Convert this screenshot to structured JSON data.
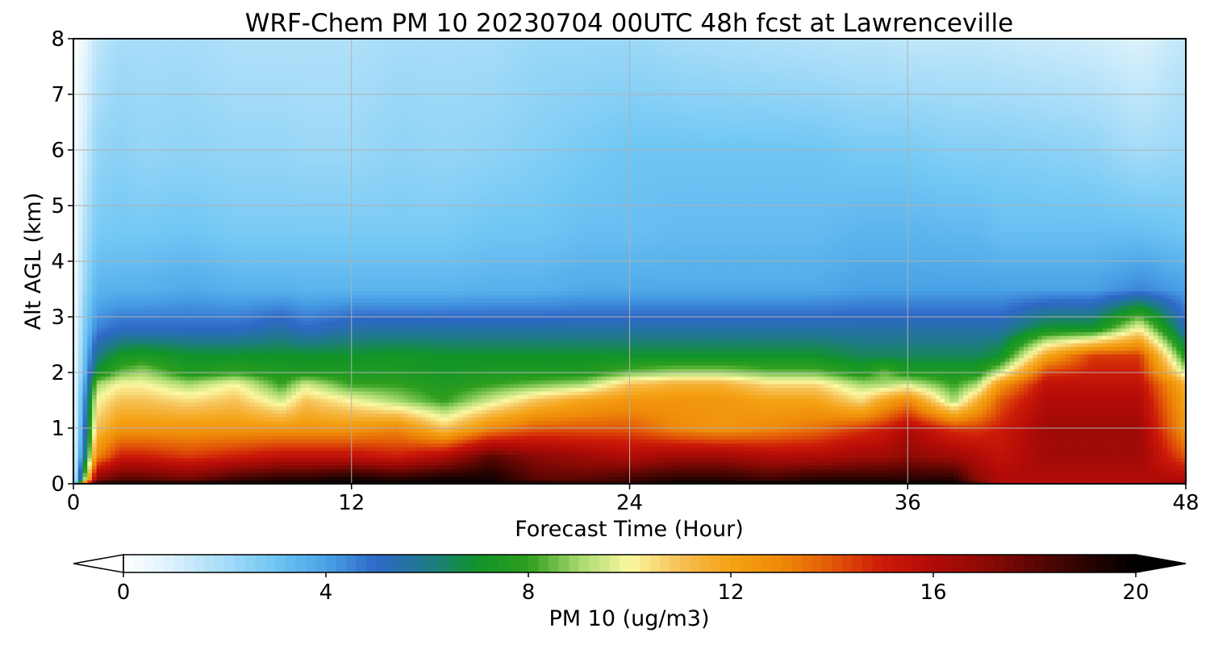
{
  "chart_data": {
    "type": "heatmap",
    "title": "WRF-Chem PM 10  20230704 00UTC 48h fcst at Lawrenceville",
    "xlabel": "Forecast Time (Hour)",
    "ylabel": "Alt AGL (km)",
    "xlim": [
      0,
      48
    ],
    "ylim": [
      0,
      8
    ],
    "xticks": [
      0,
      12,
      24,
      36,
      48
    ],
    "yticks": [
      0,
      1,
      2,
      3,
      4,
      5,
      6,
      7,
      8
    ],
    "grid": true,
    "colorbar": {
      "label": "PM 10  (ug/m3)",
      "orientation": "horizontal",
      "range": [
        0,
        20
      ],
      "ticks": [
        0,
        4,
        8,
        12,
        16,
        20
      ],
      "extend": "both",
      "stops": [
        {
          "value": 0,
          "color": "#ffffff"
        },
        {
          "value": 1,
          "color": "#d8f0fc"
        },
        {
          "value": 2,
          "color": "#a6dcf8"
        },
        {
          "value": 3,
          "color": "#6ec6f4"
        },
        {
          "value": 4,
          "color": "#4aa2e6"
        },
        {
          "value": 5,
          "color": "#2e68c8"
        },
        {
          "value": 6,
          "color": "#1f7a8a"
        },
        {
          "value": 7,
          "color": "#119428"
        },
        {
          "value": 8,
          "color": "#2d9e1e"
        },
        {
          "value": 9,
          "color": "#a6d86e"
        },
        {
          "value": 10,
          "color": "#fbf8a2"
        },
        {
          "value": 11,
          "color": "#f6c055"
        },
        {
          "value": 12,
          "color": "#f5a214"
        },
        {
          "value": 13,
          "color": "#ee8a08"
        },
        {
          "value": 14,
          "color": "#e25808"
        },
        {
          "value": 15,
          "color": "#cc1a08"
        },
        {
          "value": 16,
          "color": "#b10b07"
        },
        {
          "value": 17,
          "color": "#8e0a05"
        },
        {
          "value": 18,
          "color": "#5c0603"
        },
        {
          "value": 19,
          "color": "#2a0301"
        },
        {
          "value": 20,
          "color": "#000000"
        }
      ]
    },
    "profile_hours": [
      0,
      0.5,
      1,
      2,
      3,
      5,
      7,
      9,
      10,
      12,
      14,
      16,
      18,
      20,
      22,
      24,
      26,
      28,
      30,
      32,
      34,
      35,
      36,
      38,
      39,
      40,
      42,
      44,
      46,
      48
    ],
    "profile_altitudes_km": [
      0,
      0.1,
      0.5,
      1,
      1.5,
      1.8,
      2,
      2.3,
      2.8,
      3.5,
      4.5,
      6,
      8
    ],
    "values": [
      [
        0.5,
        0.5,
        0.4,
        0.3,
        0.3,
        0.2,
        0.2,
        0.2,
        0.1,
        0.1,
        0.1,
        0.1,
        0.0
      ],
      [
        14.0,
        9.0,
        6.0,
        5.0,
        4.5,
        4.0,
        3.5,
        3.2,
        2.8,
        2.3,
        1.8,
        1.2,
        0.6
      ],
      [
        19.0,
        17.0,
        13.0,
        11.0,
        10.0,
        9.0,
        7.0,
        6.0,
        4.5,
        3.5,
        2.8,
        2.3,
        1.5
      ],
      [
        19.5,
        18.0,
        15.0,
        12.5,
        11.0,
        10.0,
        8.5,
        7.2,
        5.0,
        3.6,
        2.9,
        2.5,
        2.0
      ],
      [
        19.5,
        18.0,
        15.0,
        12.5,
        11.0,
        10.0,
        9.0,
        7.5,
        5.0,
        3.6,
        2.9,
        2.3,
        2.0
      ],
      [
        19.5,
        17.5,
        14.5,
        12.5,
        10.5,
        9.0,
        7.5,
        7.0,
        5.0,
        3.8,
        3.0,
        2.4,
        2.0
      ],
      [
        19.8,
        18.5,
        15.0,
        12.5,
        11.0,
        10.0,
        8.0,
        7.0,
        5.0,
        3.6,
        2.8,
        2.3,
        1.8
      ],
      [
        20.0,
        19.0,
        15.5,
        12.5,
        9.5,
        8.0,
        7.5,
        7.0,
        5.5,
        3.6,
        2.8,
        2.3,
        1.8
      ],
      [
        20.0,
        19.0,
        15.5,
        12.5,
        11.0,
        9.5,
        7.5,
        7.0,
        5.0,
        3.5,
        2.8,
        2.2,
        1.8
      ],
      [
        20.0,
        19.5,
        15.5,
        12.5,
        10.0,
        8.0,
        7.5,
        7.0,
        5.5,
        3.5,
        2.8,
        2.2,
        1.8
      ],
      [
        20.0,
        19.0,
        15.0,
        13.0,
        9.0,
        8.0,
        7.5,
        7.2,
        5.5,
        3.5,
        2.8,
        2.4,
        2.0
      ],
      [
        20.0,
        19.5,
        16.0,
        11.0,
        8.0,
        7.5,
        7.2,
        7.0,
        5.5,
        3.5,
        2.8,
        2.3,
        2.0
      ],
      [
        20.0,
        19.5,
        18.0,
        13.0,
        9.5,
        8.0,
        7.5,
        7.0,
        5.5,
        3.6,
        3.0,
        2.4,
        2.0
      ],
      [
        19.5,
        18.0,
        17.0,
        14.0,
        11.0,
        8.5,
        7.5,
        7.0,
        5.5,
        3.6,
        3.0,
        2.6,
        2.2
      ],
      [
        19.0,
        18.0,
        16.5,
        14.0,
        12.0,
        9.0,
        7.5,
        7.0,
        5.5,
        3.8,
        3.2,
        2.8,
        2.2
      ],
      [
        19.0,
        18.5,
        16.0,
        14.0,
        12.5,
        11.0,
        8.5,
        7.0,
        5.5,
        3.8,
        3.2,
        3.0,
        2.2
      ],
      [
        20.0,
        19.0,
        16.5,
        13.0,
        12.5,
        11.5,
        9.0,
        7.0,
        5.5,
        3.8,
        3.3,
        3.0,
        2.0
      ],
      [
        20.0,
        19.0,
        16.5,
        12.5,
        12.5,
        11.5,
        9.0,
        7.0,
        5.5,
        3.8,
        3.3,
        3.0,
        1.9
      ],
      [
        20.0,
        18.5,
        16.0,
        13.0,
        12.0,
        10.5,
        8.5,
        7.0,
        5.5,
        3.8,
        3.3,
        3.0,
        1.8
      ],
      [
        20.0,
        19.0,
        16.0,
        13.5,
        12.0,
        10.5,
        8.5,
        7.0,
        5.5,
        3.8,
        3.3,
        3.0,
        1.7
      ],
      [
        20.0,
        19.0,
        16.5,
        14.5,
        10.5,
        9.0,
        7.5,
        6.5,
        5.5,
        4.0,
        3.5,
        2.8,
        1.6
      ],
      [
        20.0,
        19.0,
        16.5,
        15.0,
        12.0,
        9.0,
        8.5,
        6.5,
        5.5,
        4.0,
        3.5,
        2.8,
        1.6
      ],
      [
        20.0,
        19.0,
        17.0,
        16.0,
        13.0,
        9.5,
        7.5,
        6.5,
        5.5,
        4.0,
        3.5,
        2.8,
        1.5
      ],
      [
        20.0,
        19.0,
        16.5,
        14.5,
        9.0,
        8.0,
        7.5,
        6.5,
        5.5,
        4.0,
        3.4,
        2.6,
        1.5
      ],
      [
        18.0,
        17.0,
        16.0,
        14.5,
        11.5,
        9.0,
        7.5,
        6.5,
        5.5,
        4.0,
        3.4,
        2.6,
        1.5
      ],
      [
        16.0,
        16.0,
        15.5,
        15.0,
        14.0,
        12.5,
        9.5,
        7.0,
        5.5,
        4.0,
        3.2,
        2.6,
        1.4
      ],
      [
        16.0,
        16.0,
        16.5,
        16.5,
        16.0,
        15.5,
        14.5,
        12.0,
        7.0,
        4.0,
        3.2,
        2.5,
        1.3
      ],
      [
        16.0,
        16.0,
        16.5,
        16.5,
        16.0,
        15.5,
        15.0,
        14.5,
        7.0,
        4.0,
        3.2,
        2.4,
        1.2
      ],
      [
        16.0,
        16.0,
        16.5,
        16.5,
        16.0,
        15.5,
        15.0,
        14.5,
        10.0,
        4.5,
        3.2,
        2.0,
        0.9
      ],
      [
        16.5,
        16.0,
        14.0,
        12.5,
        12.0,
        11.5,
        9.5,
        7.5,
        5.2,
        4.0,
        3.0,
        2.2,
        1.5
      ]
    ]
  }
}
